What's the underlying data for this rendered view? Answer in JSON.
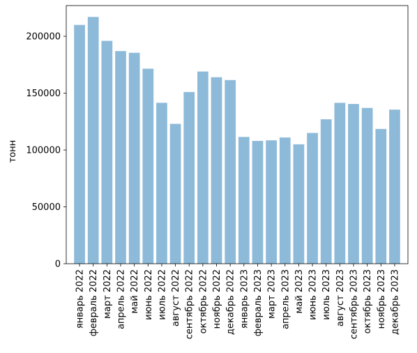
{
  "chart_data": {
    "type": "bar",
    "title": "",
    "xlabel": "",
    "ylabel": "тонн",
    "ylim": [
      0,
      227000
    ],
    "yticks": [
      0,
      50000,
      100000,
      150000,
      200000
    ],
    "ytick_labels": [
      "0",
      "50000",
      "100000",
      "150000",
      "200000"
    ],
    "grid": false,
    "categories": [
      "январь 2022",
      "февраль 2022",
      "март 2022",
      "апрель 2022",
      "май 2022",
      "июнь 2022",
      "июль 2022",
      "август 2022",
      "сентябрь 2022",
      "октябрь 2022",
      "ноябрь 2022",
      "декабрь 2022",
      "январь 2023",
      "февраль 2023",
      "март 2023",
      "апрель 2023",
      "май 2023",
      "июнь 2023",
      "июль 2023",
      "август 2023",
      "сентябрь 2023",
      "октябрь 2023",
      "ноябрь 2023",
      "декабрь 2023"
    ],
    "values": [
      210000,
      217000,
      196000,
      187000,
      185500,
      171500,
      141500,
      123000,
      151000,
      169000,
      164000,
      161500,
      111500,
      108000,
      108500,
      111000,
      105000,
      115000,
      127000,
      141500,
      140500,
      137000,
      118500,
      135500
    ],
    "bar_color": "#8ebad9"
  }
}
